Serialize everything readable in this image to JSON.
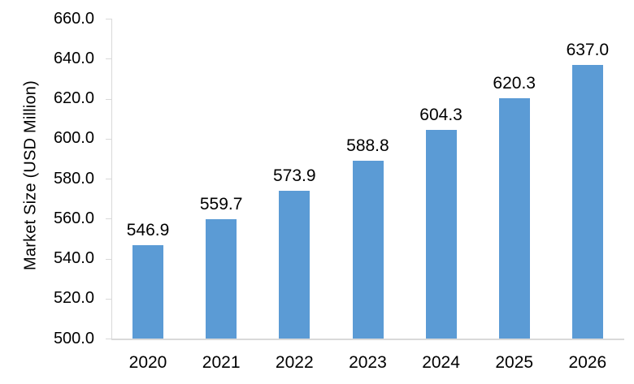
{
  "chart_data": {
    "type": "bar",
    "categories": [
      "2020",
      "2021",
      "2022",
      "2023",
      "2024",
      "2025",
      "2026"
    ],
    "values": [
      546.9,
      559.7,
      573.9,
      588.8,
      604.3,
      620.3,
      637.0
    ],
    "data_labels": [
      "546.9",
      "559.7",
      "573.9",
      "588.8",
      "604.3",
      "620.3",
      "637.0"
    ],
    "title": "",
    "xlabel": "",
    "ylabel": "Market Size (USD Million)",
    "ylim": [
      500,
      660
    ],
    "ytick_step": 20,
    "yticks": [
      "660.0",
      "640.0",
      "620.0",
      "600.0",
      "580.0",
      "560.0",
      "540.0",
      "520.0",
      "500.0"
    ],
    "grid": false,
    "legend": "none",
    "bar_color": "#5B9BD5",
    "axis_color": "#D9D9D9",
    "text_color": "#000000"
  }
}
